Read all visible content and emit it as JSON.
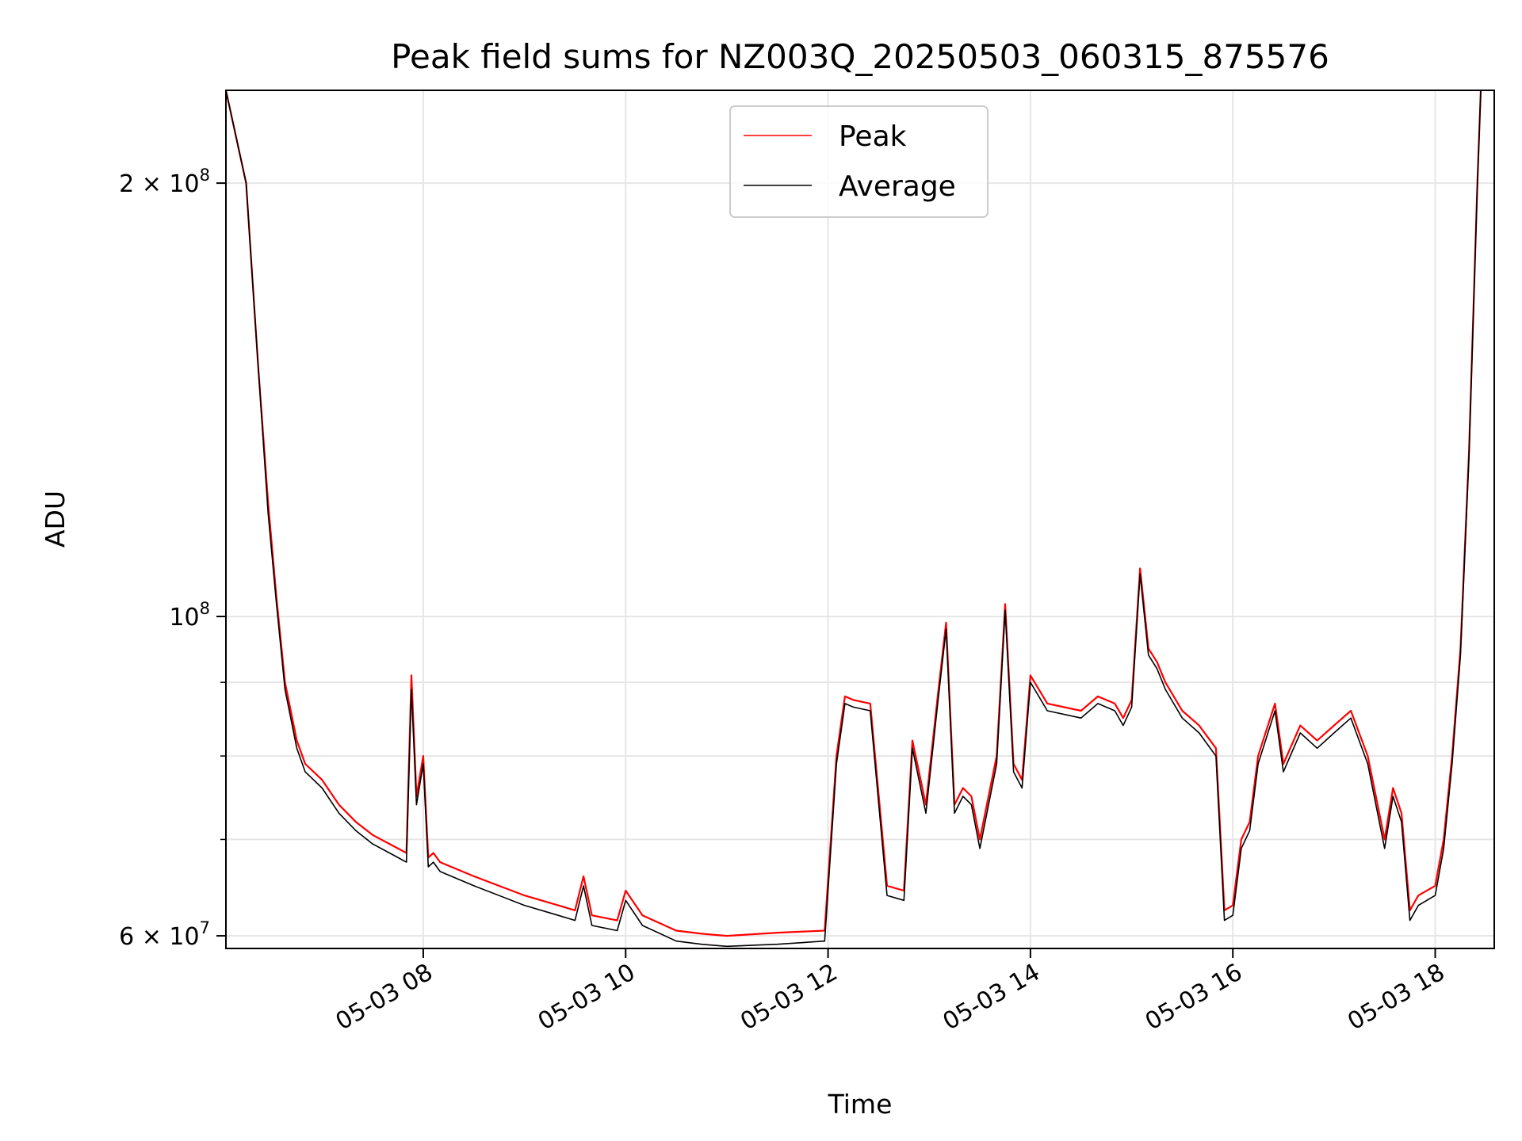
{
  "chart_data": {
    "type": "line",
    "title": "Peak field sums for NZ003Q_20250503_060315_875576",
    "xlabel": "Time",
    "ylabel": "ADU",
    "y_scale": "log",
    "ylim": [
      58800000,
      232000000
    ],
    "xlim": [
      "2025-05-03 06:03",
      "2025-05-03 18:35"
    ],
    "grid": true,
    "legend_position": "top-center",
    "x_ticks": [
      {
        "t": "2025-05-03 08:00",
        "label": "05-03 08"
      },
      {
        "t": "2025-05-03 10:00",
        "label": "05-03 10"
      },
      {
        "t": "2025-05-03 12:00",
        "label": "05-03 12"
      },
      {
        "t": "2025-05-03 14:00",
        "label": "05-03 14"
      },
      {
        "t": "2025-05-03 16:00",
        "label": "05-03 16"
      },
      {
        "t": "2025-05-03 18:00",
        "label": "05-03 18"
      }
    ],
    "y_major_ticks": [
      {
        "value": 60000000,
        "base": "6 × 10",
        "exp": "7"
      },
      {
        "value": 100000000,
        "base": "10",
        "exp": "8"
      },
      {
        "value": 200000000,
        "base": "2 × 10",
        "exp": "8"
      }
    ],
    "y_minor_grid": [
      70000000,
      80000000,
      90000000
    ],
    "series": [
      {
        "name": "Peak",
        "color": "#ff0000",
        "x": [
          "2025-05-03 06:03",
          "2025-05-03 06:15",
          "2025-05-03 06:22",
          "2025-05-03 06:28",
          "2025-05-03 06:33",
          "2025-05-03 06:38",
          "2025-05-03 06:45",
          "2025-05-03 06:50",
          "2025-05-03 07:00",
          "2025-05-03 07:10",
          "2025-05-03 07:20",
          "2025-05-03 07:30",
          "2025-05-03 07:40",
          "2025-05-03 07:50",
          "2025-05-03 07:53",
          "2025-05-03 07:56",
          "2025-05-03 08:00",
          "2025-05-03 08:03",
          "2025-05-03 08:06",
          "2025-05-03 08:10",
          "2025-05-03 08:30",
          "2025-05-03 09:00",
          "2025-05-03 09:20",
          "2025-05-03 09:30",
          "2025-05-03 09:35",
          "2025-05-03 09:40",
          "2025-05-03 09:55",
          "2025-05-03 10:00",
          "2025-05-03 10:10",
          "2025-05-03 10:30",
          "2025-05-03 10:45",
          "2025-05-03 11:00",
          "2025-05-03 11:30",
          "2025-05-03 11:58",
          "2025-05-03 12:05",
          "2025-05-03 12:10",
          "2025-05-03 12:15",
          "2025-05-03 12:25",
          "2025-05-03 12:35",
          "2025-05-03 12:45",
          "2025-05-03 12:50",
          "2025-05-03 12:58",
          "2025-05-03 13:05",
          "2025-05-03 13:10",
          "2025-05-03 13:15",
          "2025-05-03 13:20",
          "2025-05-03 13:25",
          "2025-05-03 13:30",
          "2025-05-03 13:40",
          "2025-05-03 13:45",
          "2025-05-03 13:50",
          "2025-05-03 13:55",
          "2025-05-03 14:00",
          "2025-05-03 14:10",
          "2025-05-03 14:30",
          "2025-05-03 14:40",
          "2025-05-03 14:50",
          "2025-05-03 14:55",
          "2025-05-03 15:00",
          "2025-05-03 15:05",
          "2025-05-03 15:10",
          "2025-05-03 15:15",
          "2025-05-03 15:20",
          "2025-05-03 15:30",
          "2025-05-03 15:40",
          "2025-05-03 15:50",
          "2025-05-03 15:55",
          "2025-05-03 16:00",
          "2025-05-03 16:05",
          "2025-05-03 16:10",
          "2025-05-03 16:15",
          "2025-05-03 16:25",
          "2025-05-03 16:30",
          "2025-05-03 16:40",
          "2025-05-03 16:50",
          "2025-05-03 17:00",
          "2025-05-03 17:10",
          "2025-05-03 17:20",
          "2025-05-03 17:30",
          "2025-05-03 17:35",
          "2025-05-03 17:40",
          "2025-05-03 17:45",
          "2025-05-03 17:50",
          "2025-05-03 18:00",
          "2025-05-03 18:05",
          "2025-05-03 18:10",
          "2025-05-03 18:15",
          "2025-05-03 18:20",
          "2025-05-03 18:25",
          "2025-05-03 18:27"
        ],
        "values": [
          232000000,
          200000000,
          150000000,
          120000000,
          103000000,
          90000000,
          82000000,
          79000000,
          77000000,
          74000000,
          72000000,
          70500000,
          69500000,
          68500000,
          91000000,
          75000000,
          80000000,
          68000000,
          68500000,
          67500000,
          66000000,
          64000000,
          63000000,
          62500000,
          66000000,
          62000000,
          61500000,
          64500000,
          62000000,
          60500000,
          60200000,
          60000000,
          60300000,
          60500000,
          80000000,
          88000000,
          87500000,
          87000000,
          65000000,
          64500000,
          82000000,
          74000000,
          88000000,
          99000000,
          74000000,
          76000000,
          75000000,
          70000000,
          80000000,
          102000000,
          79000000,
          77000000,
          91000000,
          87000000,
          86000000,
          88000000,
          87000000,
          85000000,
          87500000,
          108000000,
          95000000,
          93000000,
          90000000,
          86000000,
          84000000,
          81000000,
          62500000,
          63000000,
          70000000,
          72000000,
          80000000,
          87000000,
          79000000,
          84000000,
          82000000,
          84000000,
          86000000,
          80000000,
          70000000,
          76000000,
          73000000,
          62500000,
          64000000,
          65000000,
          70000000,
          80000000,
          95000000,
          130000000,
          200000000,
          232000000
        ]
      },
      {
        "name": "Average",
        "color": "#000000",
        "x": [
          "2025-05-03 06:03",
          "2025-05-03 06:15",
          "2025-05-03 06:22",
          "2025-05-03 06:28",
          "2025-05-03 06:33",
          "2025-05-03 06:38",
          "2025-05-03 06:45",
          "2025-05-03 06:50",
          "2025-05-03 07:00",
          "2025-05-03 07:10",
          "2025-05-03 07:20",
          "2025-05-03 07:30",
          "2025-05-03 07:40",
          "2025-05-03 07:50",
          "2025-05-03 07:53",
          "2025-05-03 07:56",
          "2025-05-03 08:00",
          "2025-05-03 08:03",
          "2025-05-03 08:06",
          "2025-05-03 08:10",
          "2025-05-03 08:30",
          "2025-05-03 09:00",
          "2025-05-03 09:20",
          "2025-05-03 09:30",
          "2025-05-03 09:35",
          "2025-05-03 09:40",
          "2025-05-03 09:55",
          "2025-05-03 10:00",
          "2025-05-03 10:10",
          "2025-05-03 10:30",
          "2025-05-03 10:45",
          "2025-05-03 11:00",
          "2025-05-03 11:30",
          "2025-05-03 11:58",
          "2025-05-03 12:05",
          "2025-05-03 12:10",
          "2025-05-03 12:15",
          "2025-05-03 12:25",
          "2025-05-03 12:35",
          "2025-05-03 12:45",
          "2025-05-03 12:50",
          "2025-05-03 12:58",
          "2025-05-03 13:05",
          "2025-05-03 13:10",
          "2025-05-03 13:15",
          "2025-05-03 13:20",
          "2025-05-03 13:25",
          "2025-05-03 13:30",
          "2025-05-03 13:40",
          "2025-05-03 13:45",
          "2025-05-03 13:50",
          "2025-05-03 13:55",
          "2025-05-03 14:00",
          "2025-05-03 14:10",
          "2025-05-03 14:30",
          "2025-05-03 14:40",
          "2025-05-03 14:50",
          "2025-05-03 14:55",
          "2025-05-03 15:00",
          "2025-05-03 15:05",
          "2025-05-03 15:10",
          "2025-05-03 15:15",
          "2025-05-03 15:20",
          "2025-05-03 15:30",
          "2025-05-03 15:40",
          "2025-05-03 15:50",
          "2025-05-03 15:55",
          "2025-05-03 16:00",
          "2025-05-03 16:05",
          "2025-05-03 16:10",
          "2025-05-03 16:15",
          "2025-05-03 16:25",
          "2025-05-03 16:30",
          "2025-05-03 16:40",
          "2025-05-03 16:50",
          "2025-05-03 17:00",
          "2025-05-03 17:10",
          "2025-05-03 17:20",
          "2025-05-03 17:30",
          "2025-05-03 17:35",
          "2025-05-03 17:40",
          "2025-05-03 17:45",
          "2025-05-03 17:50",
          "2025-05-03 18:00",
          "2025-05-03 18:05",
          "2025-05-03 18:10",
          "2025-05-03 18:15",
          "2025-05-03 18:20",
          "2025-05-03 18:25",
          "2025-05-03 18:27"
        ],
        "values": [
          232000000,
          200000000,
          150000000,
          118000000,
          102000000,
          89000000,
          81000000,
          78000000,
          76000000,
          73000000,
          71000000,
          69500000,
          68500000,
          67500000,
          89000000,
          74000000,
          79000000,
          67000000,
          67500000,
          66500000,
          65000000,
          63000000,
          62000000,
          61500000,
          65000000,
          61000000,
          60500000,
          63500000,
          61000000,
          59500000,
          59200000,
          59000000,
          59200000,
          59500000,
          79000000,
          87000000,
          86500000,
          86000000,
          64000000,
          63500000,
          81000000,
          73000000,
          87000000,
          98000000,
          73000000,
          75000000,
          74000000,
          69000000,
          79000000,
          101000000,
          78000000,
          76000000,
          90000000,
          86000000,
          85000000,
          87000000,
          86000000,
          84000000,
          86500000,
          107000000,
          94000000,
          92000000,
          89000000,
          85000000,
          83000000,
          80000000,
          61500000,
          62000000,
          69000000,
          71000000,
          79000000,
          86000000,
          78000000,
          83000000,
          81000000,
          83000000,
          85000000,
          79000000,
          69000000,
          75000000,
          72000000,
          61500000,
          63000000,
          64000000,
          69000000,
          79000000,
          94000000,
          129000000,
          199000000,
          232000000
        ]
      }
    ]
  }
}
